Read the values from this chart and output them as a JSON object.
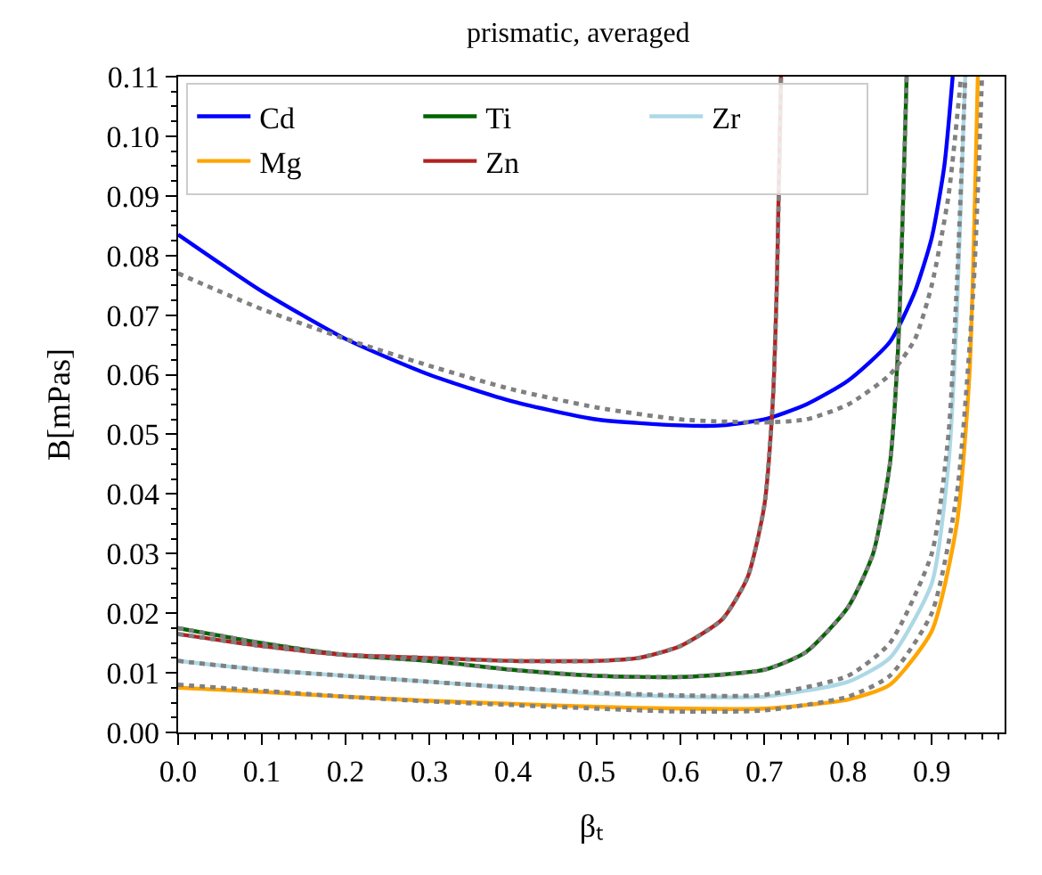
{
  "chart_data": {
    "type": "line",
    "title": "prismatic, averaged",
    "xlabel": "βₜ",
    "ylabel": "B[mPas]",
    "xlim": [
      0,
      0.987
    ],
    "ylim": [
      0,
      0.11
    ],
    "xticks": [
      {
        "value": 0,
        "label": "0.0"
      },
      {
        "value": 0.1,
        "label": "0.1"
      },
      {
        "value": 0.2,
        "label": "0.2"
      },
      {
        "value": 0.3,
        "label": "0.3"
      },
      {
        "value": 0.4,
        "label": "0.4"
      },
      {
        "value": 0.5,
        "label": "0.5"
      },
      {
        "value": 0.6,
        "label": "0.6"
      },
      {
        "value": 0.7,
        "label": "0.7"
      },
      {
        "value": 0.8,
        "label": "0.8"
      },
      {
        "value": 0.9,
        "label": "0.9"
      }
    ],
    "yticks": [
      {
        "value": 0,
        "label": "0.00"
      },
      {
        "value": 0.01,
        "label": "0.01"
      },
      {
        "value": 0.02,
        "label": "0.02"
      },
      {
        "value": 0.03,
        "label": "0.03"
      },
      {
        "value": 0.04,
        "label": "0.04"
      },
      {
        "value": 0.05,
        "label": "0.05"
      },
      {
        "value": 0.06,
        "label": "0.06"
      },
      {
        "value": 0.07,
        "label": "0.07"
      },
      {
        "value": 0.08,
        "label": "0.08"
      },
      {
        "value": 0.09,
        "label": "0.09"
      },
      {
        "value": 0.1,
        "label": "0.10"
      },
      {
        "value": 0.11,
        "label": "0.11"
      }
    ],
    "legend": "top left",
    "marker": "none",
    "line_style": "solid",
    "series": [
      {
        "name": "Cd",
        "color": "#0000ff",
        "x": [
          0,
          0.1,
          0.2,
          0.3,
          0.4,
          0.5,
          0.6,
          0.65,
          0.7,
          0.75,
          0.8,
          0.85,
          0.88,
          0.9,
          0.915,
          0.925
        ],
        "values": [
          0.0835,
          0.074,
          0.066,
          0.06,
          0.0555,
          0.0525,
          0.0515,
          0.0515,
          0.0525,
          0.055,
          0.059,
          0.0655,
          0.074,
          0.083,
          0.095,
          0.11
        ]
      },
      {
        "name": "Mg",
        "color": "#ffa500",
        "x": [
          0,
          0.1,
          0.2,
          0.3,
          0.4,
          0.5,
          0.6,
          0.7,
          0.8,
          0.85,
          0.9,
          0.93,
          0.945,
          0.955
        ],
        "values": [
          0.0075,
          0.0068,
          0.006,
          0.0053,
          0.0048,
          0.0043,
          0.004,
          0.004,
          0.0055,
          0.008,
          0.017,
          0.035,
          0.06,
          0.11
        ]
      },
      {
        "name": "Ti",
        "color": "#006400",
        "x": [
          0,
          0.1,
          0.2,
          0.3,
          0.4,
          0.5,
          0.6,
          0.7,
          0.75,
          0.8,
          0.83,
          0.85,
          0.86,
          0.87
        ],
        "values": [
          0.0175,
          0.015,
          0.013,
          0.012,
          0.0105,
          0.0095,
          0.0093,
          0.0105,
          0.0135,
          0.021,
          0.03,
          0.045,
          0.065,
          0.11
        ]
      },
      {
        "name": "Zn",
        "color": "#b22222",
        "x": [
          0,
          0.1,
          0.2,
          0.3,
          0.4,
          0.5,
          0.55,
          0.6,
          0.65,
          0.68,
          0.7,
          0.71,
          0.715,
          0.72
        ],
        "values": [
          0.0165,
          0.0145,
          0.013,
          0.0125,
          0.012,
          0.012,
          0.0125,
          0.0145,
          0.019,
          0.026,
          0.038,
          0.055,
          0.075,
          0.11
        ]
      },
      {
        "name": "Zr",
        "color": "#add8e6",
        "x": [
          0,
          0.1,
          0.2,
          0.3,
          0.4,
          0.5,
          0.6,
          0.7,
          0.8,
          0.85,
          0.9,
          0.92,
          0.93,
          0.94
        ],
        "values": [
          0.012,
          0.0105,
          0.0095,
          0.0085,
          0.0075,
          0.0065,
          0.006,
          0.006,
          0.0085,
          0.0125,
          0.025,
          0.045,
          0.07,
          0.11
        ]
      },
      {
        "color": "#808080",
        "line_style": "dotted",
        "x": [
          0,
          0.1,
          0.2,
          0.3,
          0.4,
          0.5,
          0.6,
          0.7,
          0.75,
          0.8,
          0.85,
          0.88,
          0.9,
          0.92,
          0.935
        ],
        "values": [
          0.077,
          0.071,
          0.066,
          0.0615,
          0.0575,
          0.0545,
          0.0525,
          0.052,
          0.0525,
          0.055,
          0.06,
          0.066,
          0.075,
          0.09,
          0.11
        ]
      },
      {
        "color": "#808080",
        "line_style": "dotted",
        "x": [
          0,
          0.1,
          0.2,
          0.3,
          0.4,
          0.5,
          0.6,
          0.7,
          0.8,
          0.85,
          0.9,
          0.93,
          0.95,
          0.96
        ],
        "values": [
          0.008,
          0.007,
          0.006,
          0.0052,
          0.0046,
          0.004,
          0.0035,
          0.0037,
          0.006,
          0.0095,
          0.02,
          0.04,
          0.075,
          0.11
        ]
      },
      {
        "color": "#808080",
        "line_style": "dotted",
        "x": [
          0,
          0.1,
          0.2,
          0.3,
          0.4,
          0.5,
          0.6,
          0.7,
          0.75,
          0.8,
          0.83,
          0.85,
          0.86,
          0.87
        ],
        "values": [
          0.0175,
          0.015,
          0.013,
          0.012,
          0.0105,
          0.0095,
          0.0093,
          0.0105,
          0.0135,
          0.021,
          0.03,
          0.045,
          0.065,
          0.11
        ]
      },
      {
        "color": "#808080",
        "line_style": "dotted",
        "x": [
          0,
          0.1,
          0.2,
          0.3,
          0.4,
          0.5,
          0.55,
          0.6,
          0.65,
          0.68,
          0.7,
          0.71,
          0.715,
          0.72
        ],
        "values": [
          0.0165,
          0.0145,
          0.013,
          0.0125,
          0.012,
          0.012,
          0.0125,
          0.0145,
          0.019,
          0.026,
          0.038,
          0.055,
          0.075,
          0.11
        ]
      },
      {
        "color": "#808080",
        "line_style": "dotted",
        "x": [
          0,
          0.1,
          0.2,
          0.3,
          0.4,
          0.5,
          0.6,
          0.7,
          0.8,
          0.85,
          0.9,
          0.92,
          0.93,
          0.94
        ],
        "values": [
          0.012,
          0.0105,
          0.0095,
          0.0085,
          0.0075,
          0.0067,
          0.0062,
          0.0063,
          0.0095,
          0.015,
          0.03,
          0.05,
          0.075,
          0.11
        ]
      }
    ]
  }
}
